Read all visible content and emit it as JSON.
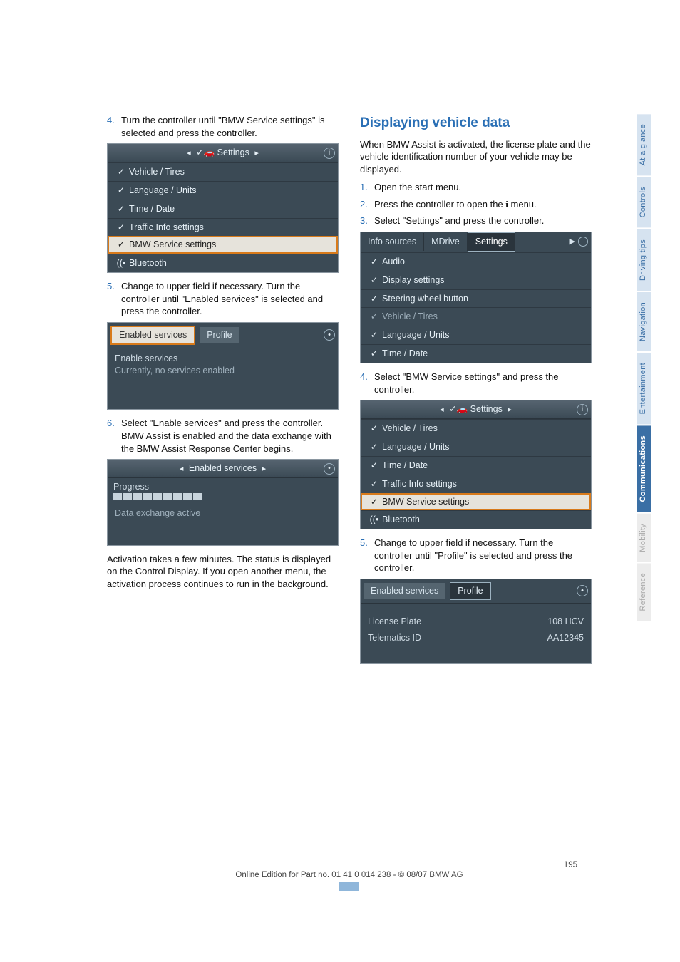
{
  "page": {
    "number": "195",
    "footer_line": "Online Edition for Part no. 01 41 0 014 238 - © 08/07 BMW AG"
  },
  "sidenav": [
    {
      "label": "At a glance",
      "cls": "nav-blue-light"
    },
    {
      "label": "Controls",
      "cls": "nav-blue-light"
    },
    {
      "label": "Driving tips",
      "cls": "nav-blue-light"
    },
    {
      "label": "Navigation",
      "cls": "nav-blue-light"
    },
    {
      "label": "Entertainment",
      "cls": "nav-blue-light"
    },
    {
      "label": "Communications",
      "cls": "nav-blue"
    },
    {
      "label": "Mobility",
      "cls": "nav-gray"
    },
    {
      "label": "Reference",
      "cls": "nav-gray"
    }
  ],
  "left": {
    "step4": "Turn the controller until \"BMW Service settings\" is selected and press the controller.",
    "shot1": {
      "header": "Settings",
      "rows": [
        {
          "icon": "✓",
          "label": "Vehicle / Tires",
          "cls": ""
        },
        {
          "icon": "✓",
          "label": "Language / Units",
          "cls": ""
        },
        {
          "icon": "✓",
          "label": "Time / Date",
          "cls": ""
        },
        {
          "icon": "✓",
          "label": "Traffic Info settings",
          "cls": ""
        },
        {
          "icon": "✓",
          "label": "BMW Service settings",
          "cls": "sel-orange"
        },
        {
          "icon": "((•",
          "label": "Bluetooth",
          "cls": ""
        }
      ]
    },
    "step5": "Change to upper field if necessary. Turn the controller until \"Enabled services\" is selected and press the controller.",
    "shot2": {
      "tab_active": "Enabled services",
      "tab_other": "Profile",
      "line1": "Enable services",
      "line2": "Currently, no services enabled"
    },
    "step6_a": "Select \"Enable services\" and press the controller.",
    "step6_b": "BMW Assist is enabled and the data exchange with the BMW Assist Response Center begins.",
    "shot3": {
      "header": "Enabled services",
      "progress_label": "Progress",
      "status": "Data exchange active"
    },
    "activation_note": "Activation takes a few minutes. The status is displayed on the Control Display. If you open another menu, the activation process continues to run in the background."
  },
  "right": {
    "heading": "Displaying vehicle data",
    "intro": "When BMW Assist is activated, the license plate and the vehicle identification number of your vehicle may be displayed.",
    "step1": "Open the start menu.",
    "step2_a": "Press the controller to open the ",
    "step2_b": " menu.",
    "step2_icon": "i",
    "step3": "Select \"Settings\" and press the controller.",
    "shot4": {
      "tab1": "Info sources",
      "tab2": "MDrive",
      "tab3": "Settings",
      "rows": [
        {
          "icon": "✓",
          "label": "Audio",
          "cls": ""
        },
        {
          "icon": "✓",
          "label": "Display settings",
          "cls": ""
        },
        {
          "icon": "✓",
          "label": "Steering wheel button",
          "cls": ""
        },
        {
          "icon": "✓",
          "label": "Vehicle / Tires",
          "cls": "dim"
        },
        {
          "icon": "✓",
          "label": "Language / Units",
          "cls": ""
        },
        {
          "icon": "✓",
          "label": "Time / Date",
          "cls": ""
        }
      ]
    },
    "step4": "Select \"BMW Service settings\" and press the controller.",
    "shot5": {
      "header": "Settings",
      "rows": [
        {
          "icon": "✓",
          "label": "Vehicle / Tires",
          "cls": ""
        },
        {
          "icon": "✓",
          "label": "Language / Units",
          "cls": ""
        },
        {
          "icon": "✓",
          "label": "Time / Date",
          "cls": ""
        },
        {
          "icon": "✓",
          "label": "Traffic Info settings",
          "cls": ""
        },
        {
          "icon": "✓",
          "label": "BMW Service settings",
          "cls": "sel-orange"
        },
        {
          "icon": "((•",
          "label": "Bluetooth",
          "cls": ""
        }
      ]
    },
    "step5": "Change to upper field if necessary. Turn the controller until \"Profile\" is selected and press the controller.",
    "shot6": {
      "tab_other": "Enabled services",
      "tab_active": "Profile",
      "row1_k": "License Plate",
      "row1_v": "108 HCV",
      "row2_k": "Telematics ID",
      "row2_v": "AA12345"
    }
  },
  "colors": {
    "blue": "#2a6fb5",
    "orange": "#d87a1a",
    "shot_bg": "#3b4a55"
  }
}
